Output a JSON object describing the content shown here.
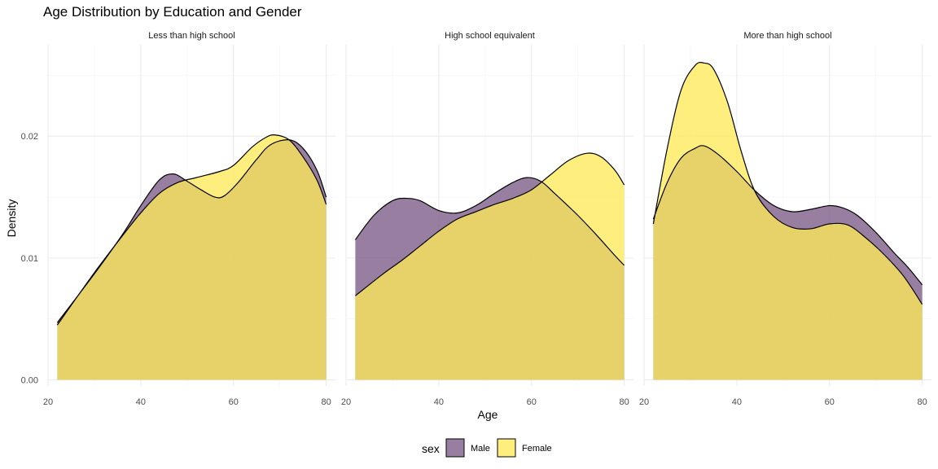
{
  "chart_data": {
    "type": "area",
    "title": "Age Distribution by Education and Gender",
    "xlabel": "Age",
    "ylabel": "Density",
    "xlim": [
      20,
      82
    ],
    "ylim": [
      -0.0005,
      0.0275
    ],
    "x_ticks": [
      20,
      40,
      60,
      80
    ],
    "y_ticks": [
      0.0,
      0.01,
      0.02
    ],
    "y_tick_labels": [
      "0.00",
      "0.01",
      "0.02"
    ],
    "grid": true,
    "legend": {
      "title": "sex",
      "position": "bottom",
      "entries": [
        "Male",
        "Female"
      ]
    },
    "series_colors": {
      "Male": "#7b5b87",
      "Female": "#fde95a"
    },
    "fill_opacity": 0.78,
    "facets": [
      {
        "label": "Less than high school",
        "series": [
          {
            "name": "Male",
            "points": [
              [
                22,
                0.0047
              ],
              [
                30,
                0.0087
              ],
              [
                36,
                0.0119
              ],
              [
                40,
                0.0143
              ],
              [
                44,
                0.0164
              ],
              [
                47,
                0.0169
              ],
              [
                50,
                0.0163
              ],
              [
                53,
                0.0156
              ],
              [
                56,
                0.015
              ],
              [
                58,
                0.0151
              ],
              [
                61,
                0.0162
              ],
              [
                65,
                0.0181
              ],
              [
                68,
                0.0193
              ],
              [
                72,
                0.0197
              ],
              [
                75,
                0.019
              ],
              [
                78,
                0.0172
              ],
              [
                80,
                0.015
              ]
            ]
          },
          {
            "name": "Female",
            "points": [
              [
                22,
                0.0045
              ],
              [
                30,
                0.0088
              ],
              [
                36,
                0.0118
              ],
              [
                40,
                0.0137
              ],
              [
                44,
                0.0153
              ],
              [
                48,
                0.0162
              ],
              [
                52,
                0.0166
              ],
              [
                57,
                0.0171
              ],
              [
                60,
                0.0176
              ],
              [
                64,
                0.0191
              ],
              [
                67,
                0.0199
              ],
              [
                69,
                0.0201
              ],
              [
                72,
                0.0197
              ],
              [
                75,
                0.0183
              ],
              [
                78,
                0.0164
              ],
              [
                80,
                0.0144
              ]
            ]
          }
        ]
      },
      {
        "label": "High school equivalent",
        "series": [
          {
            "name": "Male",
            "points": [
              [
                22,
                0.0115
              ],
              [
                26,
                0.0135
              ],
              [
                30,
                0.0147
              ],
              [
                33,
                0.0149
              ],
              [
                36,
                0.0147
              ],
              [
                40,
                0.0139
              ],
              [
                44,
                0.0137
              ],
              [
                48,
                0.0143
              ],
              [
                52,
                0.0153
              ],
              [
                56,
                0.0162
              ],
              [
                59,
                0.0166
              ],
              [
                62,
                0.0163
              ],
              [
                65,
                0.0153
              ],
              [
                70,
                0.0135
              ],
              [
                74,
                0.0119
              ],
              [
                78,
                0.0102
              ],
              [
                80,
                0.0094
              ]
            ]
          },
          {
            "name": "Female",
            "points": [
              [
                22,
                0.0069
              ],
              [
                28,
                0.0087
              ],
              [
                32,
                0.0098
              ],
              [
                36,
                0.011
              ],
              [
                40,
                0.0122
              ],
              [
                44,
                0.0132
              ],
              [
                48,
                0.0138
              ],
              [
                52,
                0.0144
              ],
              [
                56,
                0.0149
              ],
              [
                60,
                0.0156
              ],
              [
                64,
                0.0168
              ],
              [
                68,
                0.018
              ],
              [
                72,
                0.0186
              ],
              [
                75,
                0.0183
              ],
              [
                78,
                0.0172
              ],
              [
                80,
                0.016
              ]
            ]
          }
        ]
      },
      {
        "label": "More than high school",
        "series": [
          {
            "name": "Male",
            "points": [
              [
                22,
                0.0132
              ],
              [
                25,
                0.0162
              ],
              [
                28,
                0.0182
              ],
              [
                31,
                0.019
              ],
              [
                33,
                0.0192
              ],
              [
                36,
                0.0185
              ],
              [
                40,
                0.0171
              ],
              [
                44,
                0.0155
              ],
              [
                48,
                0.0143
              ],
              [
                52,
                0.0138
              ],
              [
                56,
                0.014
              ],
              [
                60,
                0.0143
              ],
              [
                63,
                0.0141
              ],
              [
                66,
                0.0135
              ],
              [
                70,
                0.0121
              ],
              [
                74,
                0.0104
              ],
              [
                77,
                0.0092
              ],
              [
                80,
                0.0078
              ]
            ]
          },
          {
            "name": "Female",
            "points": [
              [
                22,
                0.0128
              ],
              [
                25,
                0.019
              ],
              [
                28,
                0.0238
              ],
              [
                31,
                0.0258
              ],
              [
                33,
                0.026
              ],
              [
                35,
                0.0255
              ],
              [
                38,
                0.0228
              ],
              [
                41,
                0.0187
              ],
              [
                44,
                0.0154
              ],
              [
                48,
                0.0134
              ],
              [
                52,
                0.0125
              ],
              [
                56,
                0.0124
              ],
              [
                60,
                0.0128
              ],
              [
                64,
                0.0127
              ],
              [
                68,
                0.0116
              ],
              [
                72,
                0.0102
              ],
              [
                76,
                0.0085
              ],
              [
                80,
                0.0062
              ]
            ]
          }
        ]
      }
    ]
  }
}
